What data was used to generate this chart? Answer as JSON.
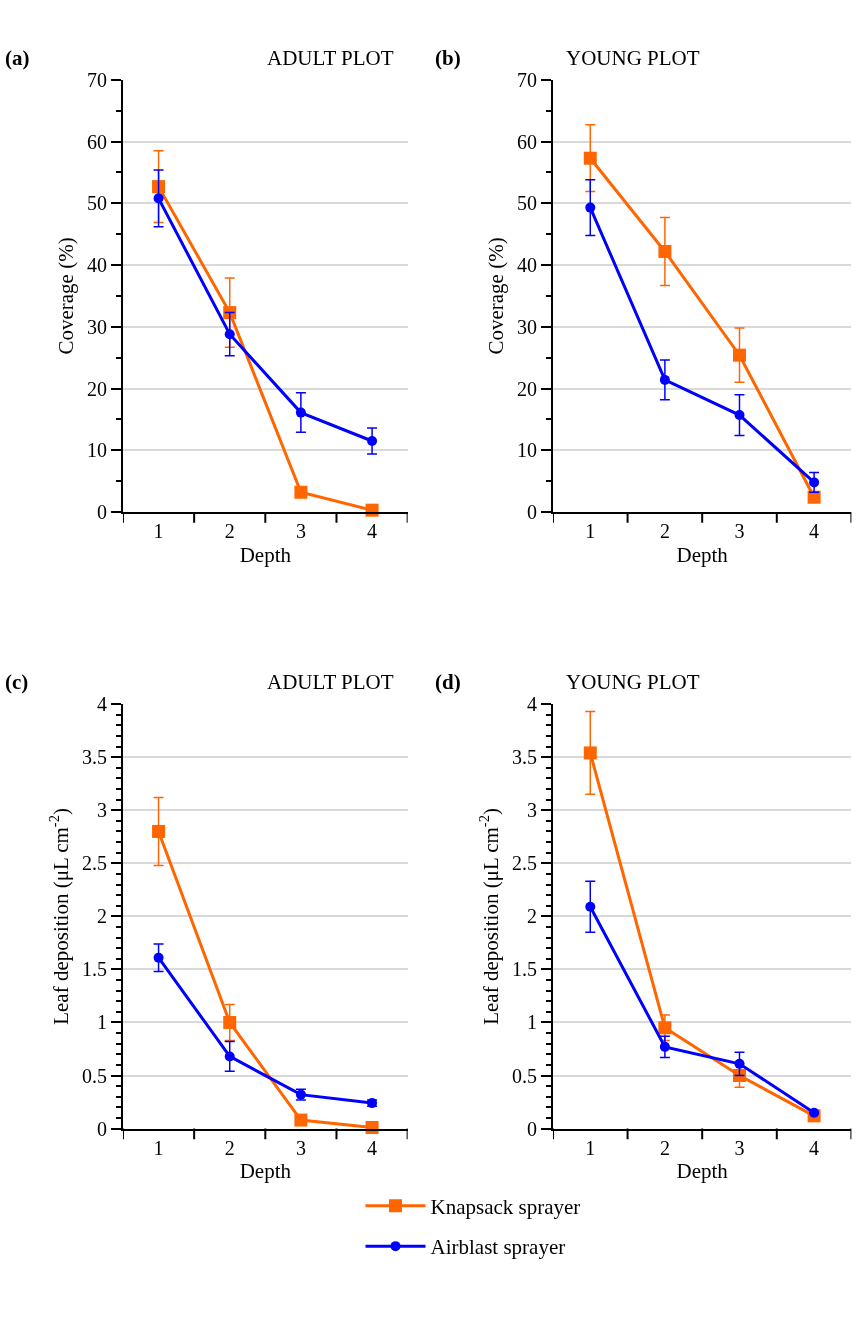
{
  "chart_data": [
    {
      "type": "line",
      "title": "ADULT PLOT",
      "annotations": [
        "(a)"
      ],
      "xlabel": "Depth",
      "ylabel": "Coverage (%)",
      "categories": [
        "1",
        "2",
        "3",
        "4"
      ],
      "ylim": [
        0,
        70
      ],
      "yticks": [
        0,
        {
          "value": 5,
          "label": null
        },
        10,
        {
          "value": 15,
          "label": null
        },
        20,
        {
          "value": 25,
          "label": null
        },
        30,
        {
          "value": 35,
          "label": null
        },
        40,
        {
          "value": 45,
          "label": null
        },
        50,
        {
          "value": 55,
          "label": null
        },
        60,
        {
          "value": 65,
          "label": null
        },
        70
      ],
      "grid": "y",
      "legend": "bottom",
      "series": [
        {
          "name": "Knapsack sprayer",
          "color": "#ff6600",
          "marker": "square",
          "values": [
            52.7,
            32.3,
            3.2,
            0.3
          ],
          "errors": [
            5.8,
            5.6,
            null,
            null
          ]
        },
        {
          "name": "Airblast sprayer",
          "color": "#0000ff",
          "marker": "circle",
          "values": [
            50.8,
            28.8,
            16.1,
            11.5
          ],
          "errors": [
            4.6,
            3.5,
            3.2,
            2.1
          ]
        }
      ]
    },
    {
      "type": "line",
      "title": "YOUNG PLOT",
      "annotations": [
        "(b)"
      ],
      "xlabel": "Depth",
      "ylabel": "Coverage (%)",
      "categories": [
        "1",
        "2",
        "3",
        "4"
      ],
      "ylim": [
        0,
        70
      ],
      "yticks": [
        0,
        {
          "value": 5,
          "label": null
        },
        10,
        {
          "value": 15,
          "label": null
        },
        20,
        {
          "value": 25,
          "label": null
        },
        30,
        {
          "value": 35,
          "label": null
        },
        40,
        {
          "value": 45,
          "label": null
        },
        50,
        {
          "value": 55,
          "label": null
        },
        60,
        {
          "value": 65,
          "label": null
        },
        70
      ],
      "grid": "y",
      "legend": "bottom",
      "series": [
        {
          "name": "Knapsack sprayer",
          "color": "#ff6600",
          "marker": "square",
          "values": [
            57.3,
            42.2,
            25.4,
            2.4
          ],
          "errors": [
            5.4,
            5.5,
            4.4,
            null
          ]
        },
        {
          "name": "Airblast sprayer",
          "color": "#0000ff",
          "marker": "circle",
          "values": [
            49.3,
            21.4,
            15.7,
            4.8
          ],
          "errors": [
            4.5,
            3.2,
            3.3,
            1.6
          ]
        }
      ]
    },
    {
      "type": "line",
      "title": "ADULT PLOT",
      "annotations": [
        "(c)"
      ],
      "xlabel": "Depth",
      "ylabel": "Leaf deposition (μL cm$^{-2}$)",
      "categories": [
        "1",
        "2",
        "3",
        "4"
      ],
      "ylim": [
        0,
        4
      ],
      "yticks": [
        0,
        {
          "value": 0.1,
          "label": null
        },
        {
          "value": 0.2,
          "label": null
        },
        {
          "value": 0.3,
          "label": null
        },
        {
          "value": 0.4,
          "label": null
        },
        0.5,
        {
          "value": 0.6,
          "label": null
        },
        {
          "value": 0.7,
          "label": null
        },
        {
          "value": 0.8,
          "label": null
        },
        {
          "value": 0.9,
          "label": null
        },
        1,
        {
          "value": 1.1,
          "label": null
        },
        {
          "value": 1.2,
          "label": null
        },
        {
          "value": 1.3,
          "label": null
        },
        {
          "value": 1.4,
          "label": null
        },
        1.5,
        {
          "value": 1.6,
          "label": null
        },
        {
          "value": 1.7,
          "label": null
        },
        {
          "value": 1.8,
          "label": null
        },
        {
          "value": 1.9,
          "label": null
        },
        2,
        {
          "value": 2.1,
          "label": null
        },
        {
          "value": 2.2,
          "label": null
        },
        {
          "value": 2.3,
          "label": null
        },
        {
          "value": 2.4,
          "label": null
        },
        2.5,
        {
          "value": 2.6,
          "label": null
        },
        {
          "value": 2.7,
          "label": null
        },
        {
          "value": 2.8,
          "label": null
        },
        {
          "value": 2.9,
          "label": null
        },
        3,
        {
          "value": 3.1,
          "label": null
        },
        {
          "value": 3.2,
          "label": null
        },
        {
          "value": 3.3,
          "label": null
        },
        {
          "value": 3.4,
          "label": null
        },
        3.5,
        {
          "value": 3.6,
          "label": null
        },
        {
          "value": 3.7,
          "label": null
        },
        {
          "value": 3.8,
          "label": null
        },
        {
          "value": 3.9,
          "label": null
        },
        4
      ],
      "grid": "y",
      "legend": "bottom",
      "series": [
        {
          "name": "Knapsack sprayer",
          "color": "#ff6600",
          "marker": "square",
          "values": [
            2.8,
            1.0,
            0.08,
            0.01
          ],
          "errors": [
            0.32,
            0.17,
            null,
            null
          ]
        },
        {
          "name": "Airblast sprayer",
          "color": "#0000ff",
          "marker": "circle",
          "values": [
            1.61,
            0.68,
            0.32,
            0.24
          ],
          "errors": [
            0.13,
            0.14,
            0.05,
            0.03
          ]
        }
      ]
    },
    {
      "type": "line",
      "title": "YOUNG PLOT",
      "annotations": [
        "(d)"
      ],
      "xlabel": "Depth",
      "ylabel": "Leaf deposition (μL cm$^{-2}$)",
      "categories": [
        "1",
        "2",
        "3",
        "4"
      ],
      "ylim": [
        0,
        4
      ],
      "yticks": [
        0,
        {
          "value": 0.1,
          "label": null
        },
        {
          "value": 0.2,
          "label": null
        },
        {
          "value": 0.3,
          "label": null
        },
        {
          "value": 0.4,
          "label": null
        },
        0.5,
        {
          "value": 0.6,
          "label": null
        },
        {
          "value": 0.7,
          "label": null
        },
        {
          "value": 0.8,
          "label": null
        },
        {
          "value": 0.9,
          "label": null
        },
        1,
        {
          "value": 1.1,
          "label": null
        },
        {
          "value": 1.2,
          "label": null
        },
        {
          "value": 1.3,
          "label": null
        },
        {
          "value": 1.4,
          "label": null
        },
        1.5,
        {
          "value": 1.6,
          "label": null
        },
        {
          "value": 1.7,
          "label": null
        },
        {
          "value": 1.8,
          "label": null
        },
        {
          "value": 1.9,
          "label": null
        },
        2,
        {
          "value": 2.1,
          "label": null
        },
        {
          "value": 2.2,
          "label": null
        },
        {
          "value": 2.3,
          "label": null
        },
        {
          "value": 2.4,
          "label": null
        },
        2.5,
        {
          "value": 2.6,
          "label": null
        },
        {
          "value": 2.7,
          "label": null
        },
        {
          "value": 2.8,
          "label": null
        },
        {
          "value": 2.9,
          "label": null
        },
        3,
        {
          "value": 3.1,
          "label": null
        },
        {
          "value": 3.2,
          "label": null
        },
        {
          "value": 3.3,
          "label": null
        },
        {
          "value": 3.4,
          "label": null
        },
        3.5,
        {
          "value": 3.6,
          "label": null
        },
        {
          "value": 3.7,
          "label": null
        },
        {
          "value": 3.8,
          "label": null
        },
        {
          "value": 3.9,
          "label": null
        },
        4
      ],
      "grid": "y",
      "legend": "bottom",
      "series": [
        {
          "name": "Knapsack sprayer",
          "color": "#ff6600",
          "marker": "square",
          "values": [
            3.54,
            0.95,
            0.5,
            0.12
          ],
          "errors": [
            0.39,
            0.12,
            0.11,
            null
          ]
        },
        {
          "name": "Airblast sprayer",
          "color": "#0000ff",
          "marker": "circle",
          "values": [
            2.09,
            0.77,
            0.61,
            0.15
          ],
          "errors": [
            0.24,
            0.1,
            0.11,
            null
          ]
        }
      ]
    }
  ]
}
